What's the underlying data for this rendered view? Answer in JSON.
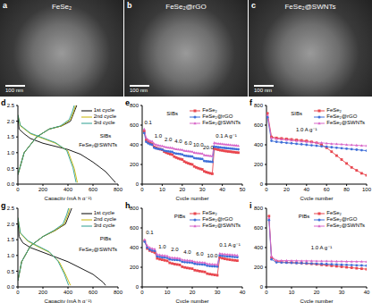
{
  "images": [
    {
      "panel": "a",
      "title": "FeSe₂",
      "scale_bar": "100 nm"
    },
    {
      "panel": "b",
      "title": "FeSe₂@rGO",
      "scale_bar": "100 nm"
    },
    {
      "panel": "c",
      "title": "FeSe₂@SWNTs",
      "scale_bar": "100 nm"
    }
  ],
  "chart_data": [
    {
      "panel": "d",
      "type": "line",
      "x_label": "Capacity (mA h g⁻¹)",
      "xlim": [
        0,
        800
      ],
      "xticks": [
        0,
        200,
        400,
        600,
        800
      ],
      "ylim": [
        0,
        2.5
      ],
      "yticks": [
        {
          "value": 0,
          "label": "0.0"
        },
        0.5,
        {
          "value": 1,
          "label": "1.0"
        },
        1.5,
        {
          "value": 2,
          "label": "2.0"
        },
        2.5
      ],
      "legend": "top right",
      "annotations": [
        {
          "text": "SIBs",
          "x": 700,
          "y": 1.55
        },
        {
          "text": "FeSe₂@SWNTs",
          "x": 640,
          "y": 1.25
        }
      ],
      "series": [
        {
          "name": "1st cycle",
          "color": "#000000",
          "x": [
            0,
            10,
            50,
            100,
            200,
            300,
            400,
            500,
            600,
            700,
            780,
            780,
            0,
            50,
            150,
            250,
            350,
            420,
            450,
            470
          ],
          "values": [
            2.1,
            1.75,
            1.6,
            1.45,
            1.3,
            1.2,
            1.1,
            0.95,
            0.7,
            0.4,
            0.05,
            null,
            0.3,
            1.0,
            1.5,
            1.75,
            1.85,
            2.0,
            2.3,
            2.5
          ]
        },
        {
          "name": "2nd cycle",
          "color": "#c8b400",
          "x": [
            0,
            20,
            100,
            200,
            300,
            400,
            450,
            475,
            475,
            0,
            50,
            150,
            250,
            350,
            420,
            445,
            460
          ],
          "values": [
            2.2,
            1.85,
            1.6,
            1.45,
            1.3,
            1.05,
            0.5,
            0.05,
            null,
            0.3,
            1.0,
            1.5,
            1.75,
            1.85,
            2.05,
            2.3,
            2.5
          ]
        },
        {
          "name": "3rd cycle",
          "color": "#2a9d8f",
          "x": [
            0,
            20,
            100,
            200,
            300,
            390,
            440,
            465,
            465,
            0,
            50,
            150,
            250,
            340,
            410,
            435,
            450
          ],
          "values": [
            2.2,
            1.87,
            1.62,
            1.47,
            1.32,
            1.07,
            0.52,
            0.05,
            null,
            0.3,
            1.0,
            1.5,
            1.75,
            1.85,
            2.05,
            2.3,
            2.5
          ]
        }
      ]
    },
    {
      "panel": "e",
      "type": "line",
      "x_label": "Cycle number",
      "xlim": [
        0,
        50
      ],
      "xticks": [
        0,
        10,
        20,
        30,
        40,
        50
      ],
      "ylim": [
        0,
        800
      ],
      "yticks": [
        0,
        200,
        400,
        600,
        800
      ],
      "legend": "top right",
      "annotations": [
        {
          "text": "SIBs",
          "x": 15,
          "y": 720
        },
        {
          "text": "0.1",
          "x": 3,
          "y": 630
        },
        {
          "text": "1.0",
          "x": 8,
          "y": 490
        },
        {
          "text": "2.0",
          "x": 13,
          "y": 460
        },
        {
          "text": "4.0",
          "x": 18,
          "y": 440
        },
        {
          "text": "6.0",
          "x": 23,
          "y": 420
        },
        {
          "text": "10.0",
          "x": 28,
          "y": 400
        },
        {
          "text": "20.0",
          "x": 33,
          "y": 375
        },
        {
          "text": "0.1 A g⁻¹",
          "x": 42,
          "y": 490
        }
      ],
      "x": [
        1,
        2,
        3,
        4,
        5,
        6,
        7,
        8,
        9,
        10,
        11,
        12,
        13,
        14,
        15,
        16,
        17,
        18,
        19,
        20,
        21,
        22,
        23,
        24,
        25,
        26,
        27,
        28,
        29,
        30,
        31,
        32,
        33,
        34,
        35,
        36,
        37,
        38,
        39,
        40,
        41,
        42,
        43,
        44,
        45,
        46,
        47,
        48
      ],
      "series": [
        {
          "name": "FeSe₂",
          "color": "#e8464e",
          "marker": "square",
          "values": [
            540,
            450,
            430,
            420,
            410,
            380,
            370,
            362,
            355,
            350,
            330,
            320,
            312,
            305,
            300,
            280,
            270,
            262,
            255,
            250,
            230,
            220,
            212,
            205,
            200,
            180,
            170,
            162,
            155,
            150,
            130,
            122,
            116,
            110,
            105,
            360,
            355,
            350,
            345,
            342,
            338,
            335,
            332,
            330,
            327,
            325,
            322,
            320
          ]
        },
        {
          "name": "FeSe₂@rGO",
          "color": "#3f6fd8",
          "marker": "circle",
          "values": [
            520,
            430,
            415,
            405,
            400,
            370,
            362,
            358,
            355,
            352,
            340,
            336,
            333,
            330,
            328,
            315,
            311,
            308,
            305,
            302,
            290,
            287,
            284,
            282,
            280,
            265,
            262,
            260,
            257,
            255,
            235,
            232,
            230,
            228,
            226,
            380,
            378,
            375,
            373,
            370,
            368,
            366,
            364,
            362,
            360,
            358,
            356,
            354
          ]
        },
        {
          "name": "FeSe₂@SWNTs",
          "color": "#d867c8",
          "marker": "triangle",
          "values": [
            560,
            470,
            450,
            440,
            435,
            410,
            400,
            395,
            390,
            388,
            380,
            375,
            372,
            370,
            368,
            360,
            356,
            353,
            350,
            348,
            340,
            337,
            335,
            333,
            330,
            320,
            317,
            315,
            312,
            310,
            295,
            292,
            290,
            288,
            285,
            420,
            415,
            412,
            410,
            408,
            405,
            403,
            400,
            398,
            396,
            395,
            393,
            390
          ]
        }
      ]
    },
    {
      "panel": "f",
      "type": "line",
      "x_label": "Cycle number",
      "xlim": [
        0,
        100
      ],
      "xticks": [
        0,
        20,
        40,
        60,
        80,
        100
      ],
      "ylim": [
        0,
        800
      ],
      "yticks": [
        0,
        200,
        400,
        600,
        800
      ],
      "legend": "top right",
      "annotations": [
        {
          "text": "SIBs",
          "x": 30,
          "y": 720
        },
        {
          "text": "1.0 A g⁻¹",
          "x": 40,
          "y": 560
        }
      ],
      "x": [
        1,
        5,
        10,
        15,
        20,
        25,
        30,
        35,
        40,
        45,
        50,
        55,
        60,
        65,
        70,
        75,
        80,
        85,
        90,
        95,
        100
      ],
      "series": [
        {
          "name": "FeSe₂",
          "color": "#e8464e",
          "marker": "square",
          "values": [
            720,
            480,
            470,
            465,
            460,
            455,
            450,
            445,
            440,
            430,
            420,
            400,
            370,
            330,
            290,
            250,
            210,
            170,
            140,
            110,
            90
          ]
        },
        {
          "name": "FeSe₂@rGO",
          "color": "#3f6fd8",
          "marker": "circle",
          "values": [
            680,
            440,
            430,
            425,
            420,
            415,
            410,
            405,
            400,
            395,
            390,
            385,
            380,
            375,
            370,
            365,
            360,
            355,
            350,
            345,
            340
          ]
        },
        {
          "name": "FeSe₂@SWNTs",
          "color": "#d867c8",
          "marker": "triangle",
          "values": [
            700,
            470,
            460,
            455,
            450,
            445,
            440,
            435,
            430,
            425,
            420,
            420,
            415,
            410,
            408,
            405,
            400,
            398,
            395,
            392,
            390
          ]
        }
      ]
    },
    {
      "panel": "g",
      "type": "line",
      "x_label": "Capacity (mA h g⁻¹)",
      "xlim": [
        0,
        800
      ],
      "xticks": [
        0,
        200,
        400,
        600,
        800
      ],
      "ylim": [
        0,
        2.5
      ],
      "yticks": [
        {
          "value": 0,
          "label": "0.0"
        },
        0.5,
        {
          "value": 1,
          "label": "1.0"
        },
        1.5,
        {
          "value": 2,
          "label": "2.0"
        },
        2.5
      ],
      "legend": "top right",
      "annotations": [
        {
          "text": "PIBs",
          "x": 700,
          "y": 1.55
        },
        {
          "text": "FeSe₂@SWNTs",
          "x": 640,
          "y": 1.2
        }
      ],
      "series": [
        {
          "name": "1st cycle",
          "color": "#000000",
          "x": [
            0,
            10,
            40,
            100,
            200,
            300,
            400,
            500,
            600,
            680,
            700,
            700,
            0,
            30,
            100,
            200,
            300,
            380,
            410,
            430
          ],
          "values": [
            2.1,
            1.6,
            1.4,
            1.25,
            1.1,
            0.95,
            0.8,
            0.6,
            0.4,
            0.15,
            0.05,
            null,
            0.2,
            0.8,
            1.3,
            1.6,
            1.8,
            2.0,
            2.3,
            2.5
          ]
        },
        {
          "name": "2nd cycle",
          "color": "#c8b400",
          "x": [
            0,
            20,
            80,
            150,
            250,
            330,
            380,
            420,
            420,
            0,
            30,
            100,
            200,
            300,
            370,
            400,
            415
          ],
          "values": [
            2.2,
            1.7,
            1.45,
            1.3,
            1.1,
            0.8,
            0.4,
            0.05,
            null,
            0.2,
            0.8,
            1.3,
            1.6,
            1.8,
            2.0,
            2.3,
            2.5
          ]
        },
        {
          "name": "3rd cycle",
          "color": "#2a9d8f",
          "x": [
            0,
            20,
            80,
            150,
            250,
            320,
            370,
            405,
            405,
            0,
            30,
            100,
            200,
            290,
            360,
            390,
            405
          ],
          "values": [
            2.2,
            1.72,
            1.47,
            1.32,
            1.12,
            0.82,
            0.42,
            0.05,
            null,
            0.2,
            0.8,
            1.3,
            1.6,
            1.8,
            2.0,
            2.3,
            2.5
          ]
        }
      ]
    },
    {
      "panel": "h",
      "type": "line",
      "x_label": "Cycle number",
      "xlim": [
        0,
        40
      ],
      "xticks": [
        0,
        10,
        20,
        30,
        40
      ],
      "ylim": [
        0,
        800
      ],
      "yticks": [
        0,
        200,
        400,
        600,
        800
      ],
      "legend": "top right",
      "annotations": [
        {
          "text": "PIBs",
          "x": 15,
          "y": 720
        },
        {
          "text": "0.1",
          "x": 3,
          "y": 560
        },
        {
          "text": "1.0",
          "x": 8,
          "y": 410
        },
        {
          "text": "2.0",
          "x": 13,
          "y": 380
        },
        {
          "text": "4.0",
          "x": 18,
          "y": 355
        },
        {
          "text": "6.0",
          "x": 23,
          "y": 335
        },
        {
          "text": "10.0",
          "x": 28,
          "y": 315
        },
        {
          "text": "0.1 A g⁻¹",
          "x": 35,
          "y": 430
        }
      ],
      "x": [
        1,
        2,
        3,
        4,
        5,
        6,
        7,
        8,
        9,
        10,
        11,
        12,
        13,
        14,
        15,
        16,
        17,
        18,
        19,
        20,
        21,
        22,
        23,
        24,
        25,
        26,
        27,
        28,
        29,
        30,
        31,
        32,
        33,
        34,
        35,
        36,
        37,
        38
      ],
      "series": [
        {
          "name": "FeSe₂",
          "color": "#e8464e",
          "marker": "square",
          "values": [
            470,
            390,
            370,
            360,
            350,
            290,
            282,
            276,
            270,
            265,
            245,
            238,
            232,
            228,
            224,
            205,
            198,
            193,
            189,
            185,
            170,
            165,
            160,
            156,
            152,
            135,
            130,
            126,
            122,
            118,
            300,
            292,
            286,
            281,
            277,
            273,
            270,
            267
          ]
        },
        {
          "name": "FeSe₂@rGO",
          "color": "#3f6fd8",
          "marker": "circle",
          "values": [
            460,
            400,
            380,
            370,
            365,
            310,
            305,
            300,
            298,
            295,
            280,
            277,
            275,
            273,
            270,
            255,
            252,
            250,
            248,
            245,
            235,
            232,
            230,
            228,
            226,
            215,
            212,
            210,
            208,
            206,
            320,
            316,
            313,
            310,
            308,
            306,
            304,
            302
          ]
        },
        {
          "name": "FeSe₂@SWNTs",
          "color": "#d867c8",
          "marker": "triangle",
          "values": [
            480,
            420,
            400,
            390,
            385,
            330,
            325,
            320,
            318,
            315,
            300,
            297,
            295,
            293,
            290,
            275,
            272,
            270,
            268,
            265,
            255,
            252,
            250,
            248,
            246,
            235,
            232,
            230,
            228,
            226,
            340,
            335,
            332,
            330,
            328,
            326,
            324,
            322
          ]
        }
      ]
    },
    {
      "panel": "i",
      "type": "line",
      "x_label": "Cycle number",
      "xlim": [
        0,
        40
      ],
      "xticks": [
        0,
        10,
        20,
        30,
        40
      ],
      "ylim": [
        0,
        800
      ],
      "yticks": [
        0,
        200,
        400,
        600,
        800
      ],
      "legend": "top right",
      "annotations": [
        {
          "text": "PIBs",
          "x": 15,
          "y": 720
        },
        {
          "text": "1.0 A g⁻¹",
          "x": 22,
          "y": 400
        }
      ],
      "x": [
        1,
        2,
        4,
        6,
        8,
        10,
        12,
        14,
        16,
        18,
        20,
        22,
        24,
        26,
        28,
        30,
        32,
        34,
        36,
        38,
        40
      ],
      "series": [
        {
          "name": "FeSe₂",
          "color": "#e8464e",
          "marker": "square",
          "values": [
            720,
            300,
            260,
            255,
            250,
            248,
            245,
            242,
            238,
            235,
            230,
            225,
            220,
            215,
            210,
            205,
            200,
            195,
            190,
            185,
            180
          ]
        },
        {
          "name": "FeSe₂@rGO",
          "color": "#3f6fd8",
          "marker": "circle",
          "values": [
            680,
            280,
            250,
            248,
            246,
            245,
            243,
            242,
            240,
            238,
            236,
            234,
            232,
            230,
            228,
            226,
            224,
            222,
            220,
            218,
            216
          ]
        },
        {
          "name": "FeSe₂@SWNTs",
          "color": "#d867c8",
          "marker": "triangle",
          "values": [
            700,
            310,
            270,
            268,
            268,
            267,
            266,
            265,
            265,
            264,
            263,
            262,
            262,
            261,
            260,
            260,
            259,
            258,
            258,
            257,
            256
          ]
        }
      ]
    }
  ]
}
